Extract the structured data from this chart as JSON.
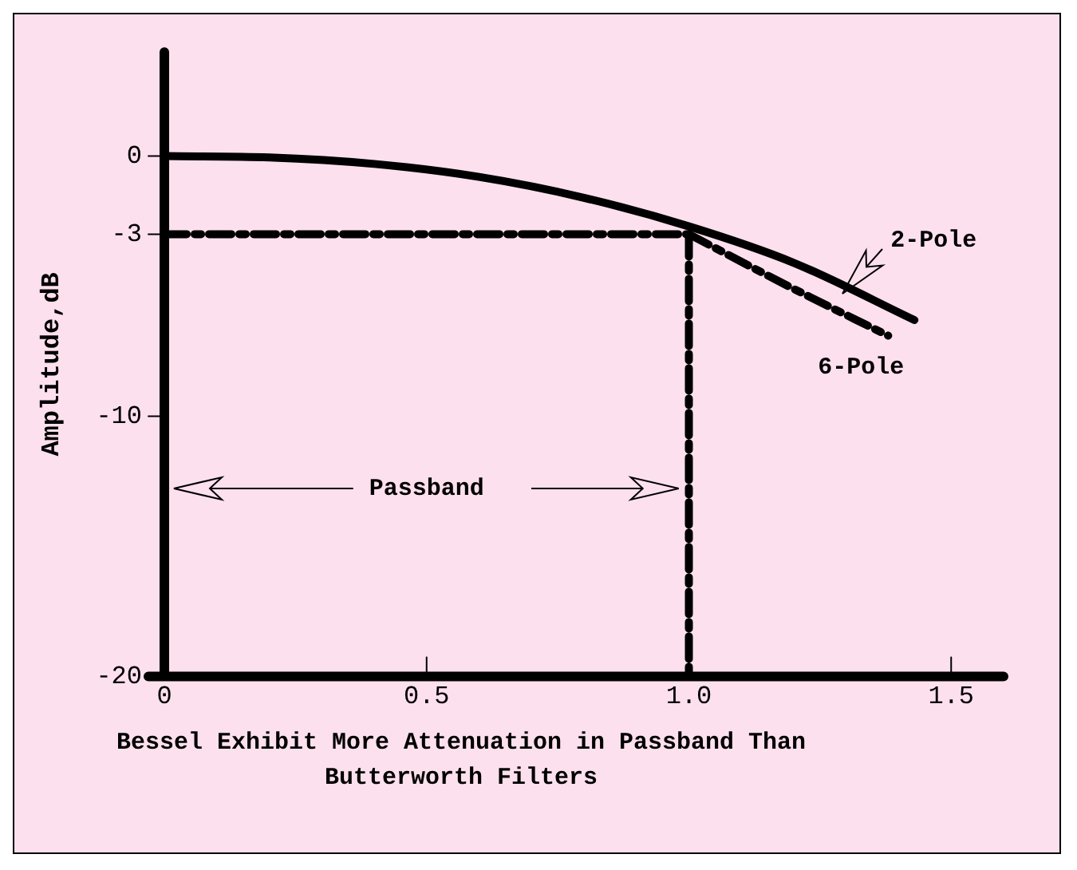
{
  "chart_data": {
    "type": "line",
    "ylabel": "Amplitude,dB",
    "annotations": [
      "Passband",
      "Bessel Exhibit More Attenuation in Passband Than Butterworth Filters"
    ],
    "xlim": [
      0,
      1.6
    ],
    "xticks": [
      0,
      0.5,
      {
        "value": 1,
        "label": "1.0"
      },
      1.5
    ],
    "ylim": [
      -20,
      4
    ],
    "yticks": [
      0,
      -3,
      -10,
      -20
    ],
    "grid": false,
    "legend": false,
    "series": [
      {
        "name": "2-Pole",
        "color": "#000000",
        "line_style": "solid",
        "x": [
          0,
          0.2,
          0.4,
          0.6,
          0.8,
          1.0,
          1.2,
          1.43
        ],
        "values": [
          0,
          -0.05,
          -0.3,
          -0.8,
          -1.6,
          -2.7,
          -4.1,
          -6.3
        ]
      },
      {
        "name": "6-Pole",
        "color": "#000000",
        "line_style": "dashed",
        "x": [
          1.0,
          1.19,
          1.38
        ],
        "values": [
          -3,
          -5,
          -6.9
        ]
      }
    ],
    "ref_lines": [
      {
        "axis": "y",
        "value": -3,
        "color": "#000000",
        "line_style": "dashed"
      },
      {
        "axis": "x",
        "value": 1,
        "color": "#000000",
        "line_style": "dashed"
      }
    ]
  }
}
